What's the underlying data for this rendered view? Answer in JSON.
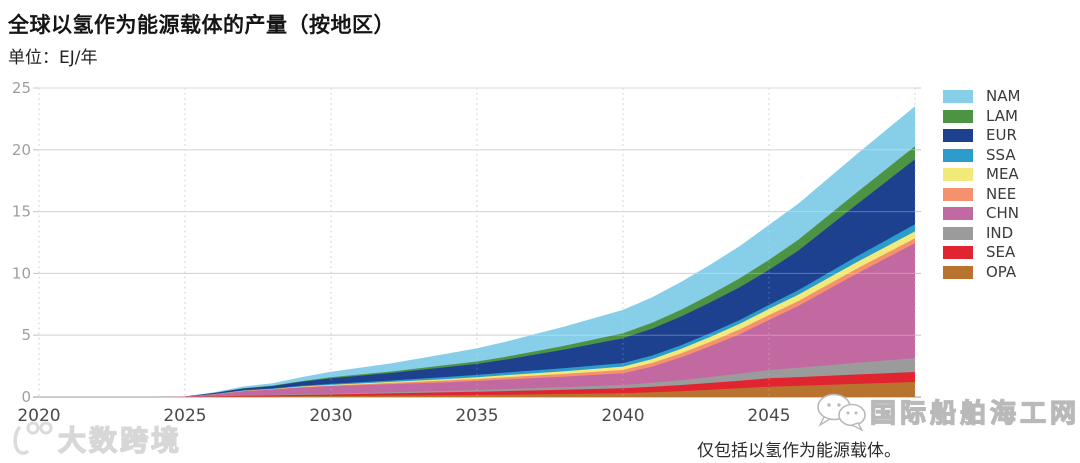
{
  "header": {
    "title": "全球以氢作为能源载体的产量（按地区）",
    "subtitle": "单位：EJ/年"
  },
  "footnote": "仅包括以氢作为能源载体。",
  "watermarks": {
    "bottom_left": "大数跨境",
    "right": "国际船舶海工网"
  },
  "colors": {
    "grid": "#cccccc",
    "axis": "#9b9b9b",
    "y_tick_label": "#9e9e9e",
    "x_tick_label": "#4a4a4a",
    "legend_label": "#3a3a3a"
  },
  "chart_data": {
    "type": "area",
    "stacked": true,
    "title": "全球以氢作为能源载体的产量（按地区）",
    "unit_label": "单位：EJ/年",
    "ylabel": "EJ/年",
    "xlim": [
      2020,
      2050
    ],
    "ylim": [
      0,
      25
    ],
    "yticks": [
      0,
      5,
      10,
      15,
      20,
      25
    ],
    "xticks": [
      2020,
      2025,
      2030,
      2035,
      2040,
      2045
    ],
    "grid": true,
    "legend_position": "right",
    "x": [
      2020,
      2024,
      2025,
      2026,
      2027,
      2028,
      2029,
      2030,
      2032,
      2034,
      2035,
      2036,
      2038,
      2040,
      2041,
      2042,
      2043,
      2044,
      2045,
      2046,
      2048,
      2050
    ],
    "stack_order_bottom_to_top": [
      "OPA",
      "SEA",
      "IND",
      "CHN",
      "NEE",
      "MEA",
      "SSA",
      "EUR",
      "LAM",
      "NAM"
    ],
    "series": [
      {
        "name": "NAM",
        "color": "#87cee9",
        "values": [
          0,
          0,
          0.01,
          0.06,
          0.14,
          0.2,
          0.32,
          0.45,
          0.65,
          0.92,
          1.08,
          1.22,
          1.55,
          1.89,
          2.07,
          2.25,
          2.43,
          2.62,
          2.83,
          2.92,
          3.1,
          3.25
        ]
      },
      {
        "name": "LAM",
        "color": "#4d9344",
        "values": [
          0,
          0,
          0,
          0.01,
          0.02,
          0.03,
          0.06,
          0.08,
          0.12,
          0.17,
          0.19,
          0.23,
          0.31,
          0.4,
          0.47,
          0.55,
          0.63,
          0.72,
          0.81,
          0.87,
          0.97,
          1.05
        ]
      },
      {
        "name": "EUR",
        "color": "#1e418f",
        "values": [
          0,
          0,
          0.01,
          0.08,
          0.15,
          0.2,
          0.32,
          0.45,
          0.6,
          0.8,
          0.89,
          1.05,
          1.5,
          2.02,
          2.17,
          2.32,
          2.48,
          2.65,
          2.83,
          3.2,
          4.2,
          5.26
        ]
      },
      {
        "name": "SSA",
        "color": "#2b9ccc",
        "values": [
          0,
          0,
          0,
          0.01,
          0.03,
          0.04,
          0.06,
          0.08,
          0.12,
          0.17,
          0.19,
          0.21,
          0.25,
          0.28,
          0.29,
          0.3,
          0.31,
          0.31,
          0.32,
          0.37,
          0.47,
          0.57
        ]
      },
      {
        "name": "MEA",
        "color": "#f2e97b",
        "values": [
          0,
          0,
          0,
          0.01,
          0.02,
          0.02,
          0.04,
          0.05,
          0.08,
          0.12,
          0.14,
          0.17,
          0.22,
          0.27,
          0.31,
          0.36,
          0.4,
          0.45,
          0.5,
          0.51,
          0.53,
          0.55
        ]
      },
      {
        "name": "NEE",
        "color": "#f5916c",
        "values": [
          0,
          0,
          0,
          0.01,
          0.02,
          0.02,
          0.04,
          0.05,
          0.09,
          0.14,
          0.16,
          0.18,
          0.22,
          0.27,
          0.3,
          0.32,
          0.35,
          0.38,
          0.4,
          0.4,
          0.4,
          0.4
        ]
      },
      {
        "name": "CHN",
        "color": "#c369a1",
        "values": [
          0,
          0,
          0.02,
          0.15,
          0.35,
          0.45,
          0.55,
          0.62,
          0.66,
          0.7,
          0.73,
          0.78,
          0.85,
          0.95,
          1.3,
          1.85,
          2.5,
          3.2,
          4.05,
          5.0,
          7.2,
          9.3
        ]
      },
      {
        "name": "IND",
        "color": "#9b9b9b",
        "values": [
          0,
          0,
          0,
          0.01,
          0.02,
          0.03,
          0.05,
          0.06,
          0.09,
          0.12,
          0.14,
          0.16,
          0.21,
          0.27,
          0.33,
          0.4,
          0.48,
          0.57,
          0.67,
          0.75,
          0.95,
          1.13
        ]
      },
      {
        "name": "SEA",
        "color": "#e02531",
        "values": [
          0,
          0,
          0.01,
          0.03,
          0.06,
          0.08,
          0.1,
          0.12,
          0.18,
          0.24,
          0.27,
          0.3,
          0.35,
          0.4,
          0.45,
          0.5,
          0.56,
          0.62,
          0.68,
          0.71,
          0.76,
          0.81
        ]
      },
      {
        "name": "OPA",
        "color": "#b8742f",
        "values": [
          0,
          0,
          0,
          0.02,
          0.04,
          0.05,
          0.07,
          0.08,
          0.11,
          0.14,
          0.16,
          0.18,
          0.24,
          0.3,
          0.38,
          0.47,
          0.58,
          0.7,
          0.83,
          0.9,
          1.06,
          1.21
        ]
      }
    ]
  }
}
